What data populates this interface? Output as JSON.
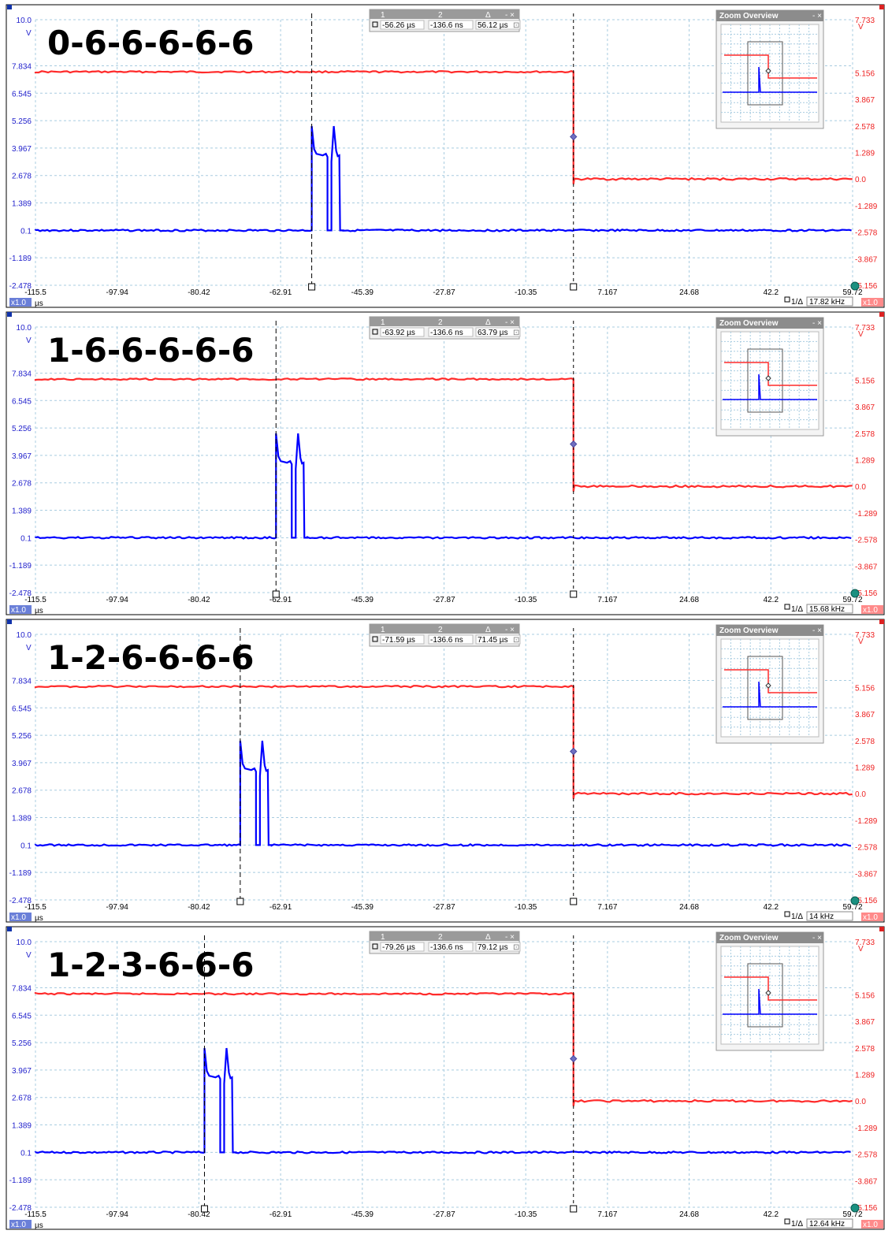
{
  "colors": {
    "ch1": "#0000ff",
    "ch2": "#ff2a2a",
    "left_axis_text": "#2222cc",
    "right_axis_text": "#ee2222",
    "grid": "#a8cce0",
    "frame": "#000000"
  },
  "shared": {
    "left_unit": "V",
    "right_unit": "V",
    "x_unit": "µs",
    "left_scale_badge": "x1.0",
    "right_scale_badge": "x1.0",
    "zoom_overview_title": "Zoom Overview",
    "cursor_headers": [
      "1",
      "2",
      "Δ"
    ],
    "left_ticks": [
      "10.0",
      "7.834",
      "6.545",
      "5.256",
      "3.967",
      "2.678",
      "1.389",
      "0.1",
      "-1.189",
      "-2.478"
    ],
    "right_ticks": [
      "7.733",
      "5.156",
      "3.867",
      "2.578",
      "1.289",
      "0.0",
      "-1.289",
      "-2.578",
      "-3.867",
      "-5.156"
    ],
    "x_ticks": [
      "-115.5",
      "-97.94",
      "-80.42",
      "-62.91",
      "-45.39",
      "-27.87",
      "-10.35",
      "7.167",
      "24.68",
      "42.2",
      "59.72"
    ]
  },
  "chart_data": [
    {
      "type": "line",
      "title": "0-6-6-6-6-6",
      "xlim": [
        -115.5,
        59.72
      ],
      "ylim_left": [
        -2.478,
        10.0
      ],
      "ylim_right": [
        -5.156,
        7.733
      ],
      "cursor1_us": -56.26,
      "cursor2_us": -0.1366,
      "cursor_readout": [
        "-56.26 µs",
        "-136.6 ns",
        "56.12 µs"
      ],
      "freq_readout": "17.82 kHz",
      "series": [
        {
          "axis": "left",
          "values_desc": "pulse",
          "baseline_v": 0.1,
          "pulse_start_us": -56.26,
          "pulse_peak_v": 5.0,
          "pulse_plateau_v": 3.7
        },
        {
          "axis": "right",
          "values_desc": "step",
          "high_v": 6.93,
          "low_v": 0.0,
          "step_us": -0.14
        }
      ]
    },
    {
      "type": "line",
      "title": "1-6-6-6-6-6",
      "xlim": [
        -115.5,
        59.72
      ],
      "ylim_left": [
        -2.478,
        10.0
      ],
      "ylim_right": [
        -5.156,
        7.733
      ],
      "cursor1_us": -63.92,
      "cursor2_us": -0.1366,
      "cursor_readout": [
        "-63.92 µs",
        "-136.6 ns",
        "63.79 µs"
      ],
      "freq_readout": "15.68 kHz",
      "series": [
        {
          "axis": "left",
          "values_desc": "pulse",
          "baseline_v": 0.1,
          "pulse_start_us": -63.92,
          "pulse_peak_v": 5.0,
          "pulse_plateau_v": 3.7
        },
        {
          "axis": "right",
          "values_desc": "step",
          "high_v": 6.93,
          "low_v": 0.0,
          "step_us": -0.14
        }
      ]
    },
    {
      "type": "line",
      "title": "1-2-6-6-6-6",
      "xlim": [
        -115.5,
        59.72
      ],
      "ylim_left": [
        -2.478,
        10.0
      ],
      "ylim_right": [
        -5.156,
        7.733
      ],
      "cursor1_us": -71.59,
      "cursor2_us": -0.1366,
      "cursor_readout": [
        "-71.59 µs",
        "-136.6 ns",
        "71.45 µs"
      ],
      "freq_readout": "14 kHz",
      "series": [
        {
          "axis": "left",
          "values_desc": "pulse",
          "baseline_v": 0.1,
          "pulse_start_us": -71.59,
          "pulse_peak_v": 5.0,
          "pulse_plateau_v": 3.7
        },
        {
          "axis": "right",
          "values_desc": "step",
          "high_v": 6.93,
          "low_v": 0.0,
          "step_us": -0.14
        }
      ]
    },
    {
      "type": "line",
      "title": "1-2-3-6-6-6",
      "xlim": [
        -115.5,
        59.72
      ],
      "ylim_left": [
        -2.478,
        10.0
      ],
      "ylim_right": [
        -5.156,
        7.733
      ],
      "cursor1_us": -79.26,
      "cursor2_us": -0.1366,
      "cursor_readout": [
        "-79.26 µs",
        "-136.6 ns",
        "79.12 µs"
      ],
      "freq_readout": "12.64 kHz",
      "series": [
        {
          "axis": "left",
          "values_desc": "pulse",
          "baseline_v": 0.1,
          "pulse_start_us": -79.26,
          "pulse_peak_v": 5.0,
          "pulse_plateau_v": 3.7
        },
        {
          "axis": "right",
          "values_desc": "step",
          "high_v": 6.93,
          "low_v": 0.0,
          "step_us": -0.14
        }
      ]
    }
  ]
}
